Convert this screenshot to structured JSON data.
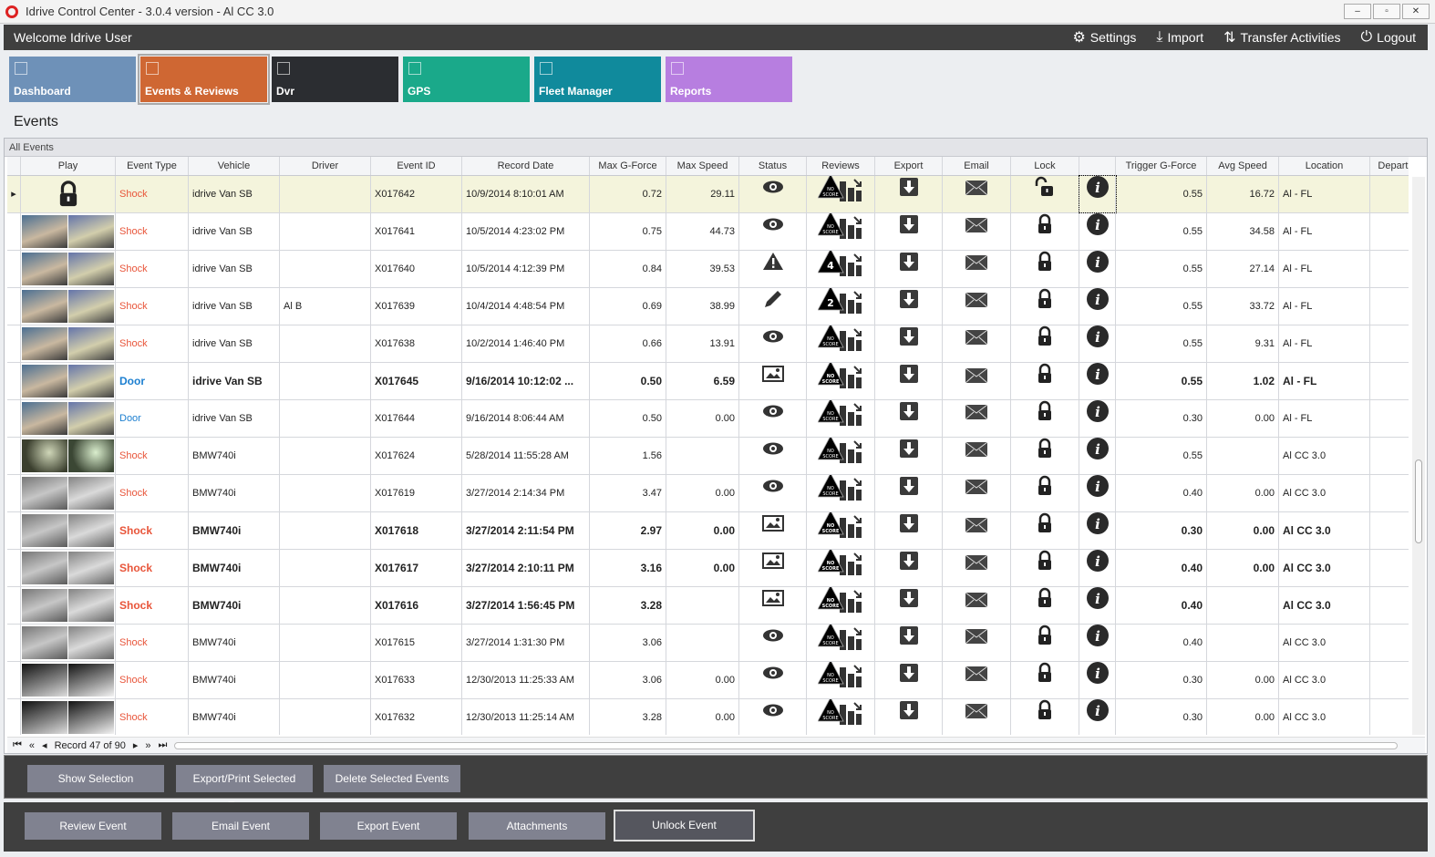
{
  "window": {
    "title": "Idrive Control Center - 3.0.4 version - Al CC 3.0",
    "controls": [
      "–",
      "▫",
      "✕"
    ]
  },
  "topbar": {
    "welcome": "Welcome Idrive User",
    "nav": [
      {
        "icon": "gear-icon",
        "glyph": "⚙",
        "label": "Settings"
      },
      {
        "icon": "import-icon",
        "glyph": "⤓",
        "label": "Import"
      },
      {
        "icon": "transfer-icon",
        "glyph": "⇅",
        "label": "Transfer Activities"
      },
      {
        "icon": "power-icon",
        "glyph": "⏻",
        "label": "Logout"
      }
    ]
  },
  "tiles": [
    {
      "label": "Dashboard",
      "color": "#6e91b8"
    },
    {
      "label": "Events & Reviews",
      "color": "#cf6733",
      "selected": true
    },
    {
      "label": "Dvr",
      "color": "#2b2d31"
    },
    {
      "label": "GPS",
      "color": "#1aa98a"
    },
    {
      "label": "Fleet Manager",
      "color": "#108a9c"
    },
    {
      "label": "Reports",
      "color": "#b77ee0"
    }
  ],
  "page_title": "Events",
  "panel_title": "All Events",
  "columns": [
    "",
    "Play",
    "Event Type",
    "Vehicle",
    "Driver",
    "Event ID",
    "Record Date",
    "Max G-Force",
    "Max Speed",
    "Status",
    "Reviews",
    "Export",
    "Email",
    "Lock",
    "",
    "Trigger G-Force",
    "Avg Speed",
    "Location",
    "Departm"
  ],
  "rows": [
    {
      "type": "Shock",
      "vehicle": "idrive Van SB",
      "driver": "",
      "id": "X017642",
      "date": "10/9/2014 8:10:01 AM",
      "maxg": "0.72",
      "maxs": "29.11",
      "status": "eye",
      "review": "NO SCORE",
      "lock": "unlocked",
      "trig": "0.55",
      "avg": "16.72",
      "loc": "Al - FL",
      "thumb": "locked",
      "selected": true
    },
    {
      "type": "Shock",
      "vehicle": "idrive Van SB",
      "driver": "",
      "id": "X017641",
      "date": "10/5/2014 4:23:02 PM",
      "maxg": "0.75",
      "maxs": "44.73",
      "status": "eye",
      "review": "NO SCORE",
      "lock": "locked",
      "trig": "0.55",
      "avg": "34.58",
      "loc": "Al - FL",
      "thumb": "a"
    },
    {
      "type": "Shock",
      "vehicle": "idrive Van SB",
      "driver": "",
      "id": "X017640",
      "date": "10/5/2014 4:12:39 PM",
      "maxg": "0.84",
      "maxs": "39.53",
      "status": "warning",
      "review": "4",
      "lock": "locked",
      "trig": "0.55",
      "avg": "27.14",
      "loc": "Al - FL",
      "thumb": "a"
    },
    {
      "type": "Shock",
      "vehicle": "idrive Van SB",
      "driver": "Al B",
      "id": "X017639",
      "date": "10/4/2014 4:48:54 PM",
      "maxg": "0.69",
      "maxs": "38.99",
      "status": "pencil",
      "review": "2",
      "lock": "locked",
      "trig": "0.55",
      "avg": "33.72",
      "loc": "Al - FL",
      "thumb": "a"
    },
    {
      "type": "Shock",
      "vehicle": "idrive Van SB",
      "driver": "",
      "id": "X017638",
      "date": "10/2/2014 1:46:40 PM",
      "maxg": "0.66",
      "maxs": "13.91",
      "status": "eye",
      "review": "NO SCORE",
      "lock": "locked",
      "trig": "0.55",
      "avg": "9.31",
      "loc": "Al - FL",
      "thumb": "a"
    },
    {
      "type": "Door",
      "vehicle": "idrive Van SB",
      "driver": "",
      "id": "X017645",
      "date": "9/16/2014 10:12:02 ...",
      "maxg": "0.50",
      "maxs": "6.59",
      "status": "image",
      "review": "NO SCORE",
      "lock": "locked",
      "trig": "0.55",
      "avg": "1.02",
      "loc": "Al - FL",
      "thumb": "a",
      "bold": true
    },
    {
      "type": "Door",
      "vehicle": "idrive Van SB",
      "driver": "",
      "id": "X017644",
      "date": "9/16/2014 8:06:44 AM",
      "maxg": "0.50",
      "maxs": "0.00",
      "status": "eye",
      "review": "NO SCORE",
      "lock": "locked",
      "trig": "0.30",
      "avg": "0.00",
      "loc": "Al - FL",
      "thumb": "a"
    },
    {
      "type": "Shock",
      "vehicle": "BMW740i",
      "driver": "",
      "id": "X017624",
      "date": "5/28/2014 11:55:28 AM",
      "maxg": "1.56",
      "maxs": "",
      "status": "eye",
      "review": "NO SCORE",
      "lock": "locked",
      "trig": "0.55",
      "avg": "",
      "loc": "Al CC 3.0",
      "thumb": "d"
    },
    {
      "type": "Shock",
      "vehicle": "BMW740i",
      "driver": "",
      "id": "X017619",
      "date": "3/27/2014 2:14:34 PM",
      "maxg": "3.47",
      "maxs": "0.00",
      "status": "eye",
      "review": "NO SCORE",
      "lock": "locked",
      "trig": "0.40",
      "avg": "0.00",
      "loc": "Al CC 3.0",
      "thumb": "b"
    },
    {
      "type": "Shock",
      "vehicle": "BMW740i",
      "driver": "",
      "id": "X017618",
      "date": "3/27/2014 2:11:54 PM",
      "maxg": "2.97",
      "maxs": "0.00",
      "status": "image",
      "review": "NO SCORE",
      "lock": "locked",
      "trig": "0.30",
      "avg": "0.00",
      "loc": "Al CC 3.0",
      "thumb": "b",
      "bold": true
    },
    {
      "type": "Shock",
      "vehicle": "BMW740i",
      "driver": "",
      "id": "X017617",
      "date": "3/27/2014 2:10:11 PM",
      "maxg": "3.16",
      "maxs": "0.00",
      "status": "image",
      "review": "NO SCORE",
      "lock": "locked",
      "trig": "0.40",
      "avg": "0.00",
      "loc": "Al CC 3.0",
      "thumb": "b",
      "bold": true
    },
    {
      "type": "Shock",
      "vehicle": "BMW740i",
      "driver": "",
      "id": "X017616",
      "date": "3/27/2014 1:56:45 PM",
      "maxg": "3.28",
      "maxs": "",
      "status": "image",
      "review": "NO SCORE",
      "lock": "locked",
      "trig": "0.40",
      "avg": "",
      "loc": "Al CC 3.0",
      "thumb": "b",
      "bold": true
    },
    {
      "type": "Shock",
      "vehicle": "BMW740i",
      "driver": "",
      "id": "X017615",
      "date": "3/27/2014 1:31:30 PM",
      "maxg": "3.06",
      "maxs": "",
      "status": "eye",
      "review": "NO SCORE",
      "lock": "locked",
      "trig": "0.40",
      "avg": "",
      "loc": "Al CC 3.0",
      "thumb": "b"
    },
    {
      "type": "Shock",
      "vehicle": "BMW740i",
      "driver": "",
      "id": "X017633",
      "date": "12/30/2013 11:25:33 AM",
      "maxg": "3.06",
      "maxs": "0.00",
      "status": "eye",
      "review": "NO SCORE",
      "lock": "locked",
      "trig": "0.30",
      "avg": "0.00",
      "loc": "Al CC 3.0",
      "thumb": "e"
    },
    {
      "type": "Shock",
      "vehicle": "BMW740i",
      "driver": "",
      "id": "X017632",
      "date": "12/30/2013 11:25:14 AM",
      "maxg": "3.28",
      "maxs": "0.00",
      "status": "eye",
      "review": "NO SCORE",
      "lock": "locked",
      "trig": "0.30",
      "avg": "0.00",
      "loc": "Al CC 3.0",
      "thumb": "e"
    }
  ],
  "pager": {
    "record": "Record 47 of 90",
    "first": "⏮",
    "prev_page": "«",
    "prev": "◂",
    "next": "▸",
    "next_page": "»",
    "last": "⏭"
  },
  "actions1": [
    "Show Selection",
    "Export/Print Selected Events",
    "Delete Selected  Events"
  ],
  "actions2": [
    "Review Event",
    "Email Event",
    "Export Event",
    "Attachments",
    "Unlock Event"
  ],
  "colors": {
    "shock": "#e8553a",
    "door": "#1c7fd0",
    "selected_row": "#f4f4dc"
  }
}
